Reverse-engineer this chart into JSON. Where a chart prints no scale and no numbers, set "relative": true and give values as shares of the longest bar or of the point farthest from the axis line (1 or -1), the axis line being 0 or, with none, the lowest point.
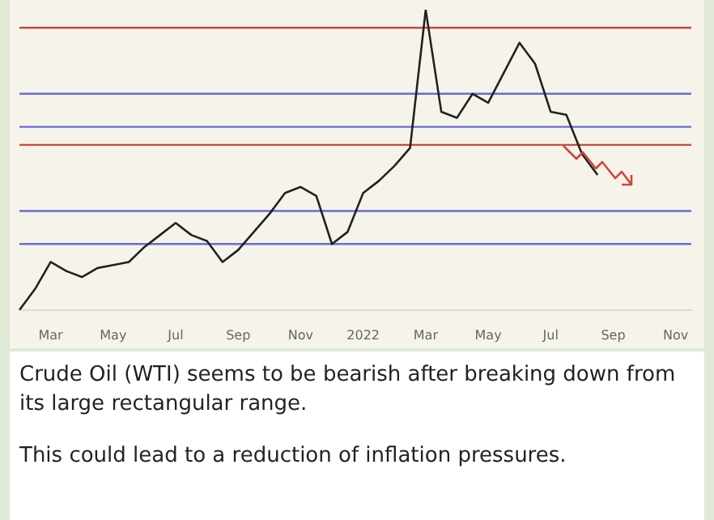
{
  "chart_data": {
    "type": "line",
    "relative": true,
    "categories": [
      null,
      null,
      "Mar",
      null,
      null,
      null,
      "May",
      null,
      null,
      null,
      "Jul",
      null,
      null,
      null,
      "Sep",
      null,
      null,
      null,
      "Nov",
      null,
      null,
      null,
      "2022",
      null,
      null,
      null,
      "Mar",
      null,
      null,
      null,
      "May",
      null,
      null,
      null,
      "Jul",
      null,
      null,
      null,
      "Sep",
      null,
      null,
      null,
      "Nov",
      null
    ],
    "series": [
      {
        "color": "#222222",
        "values": [
          0,
          0.07,
          0.16,
          0.13,
          0.11,
          0.14,
          0.15,
          0.16,
          0.21,
          0.25,
          0.29,
          0.25,
          0.23,
          0.16,
          0.2,
          0.26,
          0.32,
          0.39,
          0.41,
          0.38,
          0.22,
          0.26,
          0.39,
          0.43,
          0.48,
          0.54,
          1,
          0.66,
          0.64,
          0.72,
          0.69,
          0.79,
          0.89,
          0.82,
          0.66,
          0.65,
          0.52,
          0.45,
          null,
          null,
          null,
          null,
          null,
          null
        ]
      }
    ],
    "ref_lines": [
      {
        "axis": "y",
        "value": 0.94,
        "color": "#d0453a"
      },
      {
        "axis": "y",
        "value": 0.55,
        "color": "#d0453a"
      },
      {
        "axis": "y",
        "value": 0.72,
        "color": "#6b6bd6"
      },
      {
        "axis": "y",
        "value": 0.61,
        "color": "#6b6bd6"
      },
      {
        "axis": "y",
        "value": 0.33,
        "color": "#6b6bd6"
      },
      {
        "axis": "y",
        "value": 0.22,
        "color": "#6b6bd6"
      }
    ],
    "marker": "none",
    "legend": false,
    "annotations": [
      "Crude Oil (WTI) seems to be bearish after breaking down from its large rectangular range.",
      "This could lead to a reduction of inflation pressures."
    ]
  }
}
